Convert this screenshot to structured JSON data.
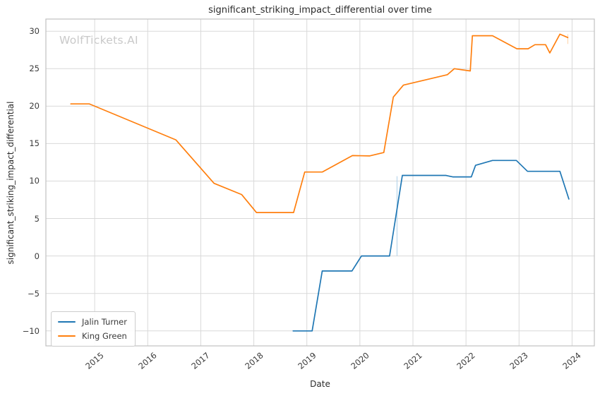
{
  "watermark": "WolfTickets.AI",
  "chart_data": {
    "type": "line",
    "title": "significant_striking_impact_differential over time",
    "xlabel": "Date",
    "ylabel": "significant_striking_impact_differential",
    "xlim": [
      2014.08,
      2024.42
    ],
    "ylim": [
      -12.0,
      31.62
    ],
    "grid": true,
    "legend_position": "lower left",
    "colors": {
      "grid": "#d9d9d9",
      "spine": "#c0c0c0",
      "text": "#3a3a3a",
      "background": "#ffffff"
    },
    "x_ticks": [
      {
        "value": 2015,
        "label": "2015"
      },
      {
        "value": 2016,
        "label": "2016"
      },
      {
        "value": 2017,
        "label": "2017"
      },
      {
        "value": 2018,
        "label": "2018"
      },
      {
        "value": 2019,
        "label": "2019"
      },
      {
        "value": 2020,
        "label": "2020"
      },
      {
        "value": 2021,
        "label": "2021"
      },
      {
        "value": 2022,
        "label": "2022"
      },
      {
        "value": 2023,
        "label": "2023"
      },
      {
        "value": 2024,
        "label": "2024"
      }
    ],
    "y_ticks": [
      {
        "value": 30,
        "label": "30"
      },
      {
        "value": 25,
        "label": "25"
      },
      {
        "value": 20,
        "label": "20"
      },
      {
        "value": 15,
        "label": "15"
      },
      {
        "value": 10,
        "label": "10"
      },
      {
        "value": 5,
        "label": "5"
      },
      {
        "value": 0,
        "label": "0"
      },
      {
        "value": -5,
        "label": "−5"
      },
      {
        "value": -10,
        "label": "−10"
      }
    ],
    "series": [
      {
        "name": "Jalin Turner",
        "color": "#1f77b4",
        "points": [
          [
            2018.74,
            -10
          ],
          [
            2019.1,
            -10
          ],
          [
            2019.29,
            -2
          ],
          [
            2019.85,
            -2
          ],
          [
            2020.03,
            0
          ],
          [
            2020.56,
            0
          ],
          [
            2020.8,
            10.75
          ],
          [
            2021.62,
            10.75
          ],
          [
            2021.75,
            10.55
          ],
          [
            2022.1,
            10.55
          ],
          [
            2022.18,
            12.1
          ],
          [
            2022.5,
            12.75
          ],
          [
            2022.95,
            12.75
          ],
          [
            2023.16,
            11.3
          ],
          [
            2023.77,
            11.3
          ],
          [
            2023.94,
            7.6
          ]
        ]
      },
      {
        "name": "King Green",
        "color": "#ff7f0e",
        "points": [
          [
            2014.55,
            20.3
          ],
          [
            2014.9,
            20.3
          ],
          [
            2016.53,
            15.5
          ],
          [
            2017.25,
            9.7
          ],
          [
            2017.77,
            8.2
          ],
          [
            2018.05,
            5.8
          ],
          [
            2018.75,
            5.8
          ],
          [
            2018.96,
            11.2
          ],
          [
            2019.29,
            11.2
          ],
          [
            2019.86,
            13.4
          ],
          [
            2020.18,
            13.35
          ],
          [
            2020.45,
            13.8
          ],
          [
            2020.63,
            21.2
          ],
          [
            2020.82,
            22.8
          ],
          [
            2021.65,
            24.2
          ],
          [
            2021.78,
            25.0
          ],
          [
            2022.08,
            24.7
          ],
          [
            2022.12,
            29.4
          ],
          [
            2022.5,
            29.4
          ],
          [
            2022.96,
            27.65
          ],
          [
            2023.17,
            27.65
          ],
          [
            2023.3,
            28.2
          ],
          [
            2023.5,
            28.2
          ],
          [
            2023.58,
            27.1
          ],
          [
            2023.77,
            29.6
          ],
          [
            2023.92,
            29.15
          ]
        ]
      }
    ],
    "jump_markers": [
      {
        "x": 2020.7,
        "y1": 0.0,
        "y2": 10.65,
        "color": "#b9d6eb"
      },
      {
        "x": 2023.92,
        "y1": 28.3,
        "y2": 29.6,
        "color": "#ffd9b3"
      }
    ]
  },
  "legend": {
    "items": [
      "Jalin Turner",
      "King Green"
    ]
  }
}
